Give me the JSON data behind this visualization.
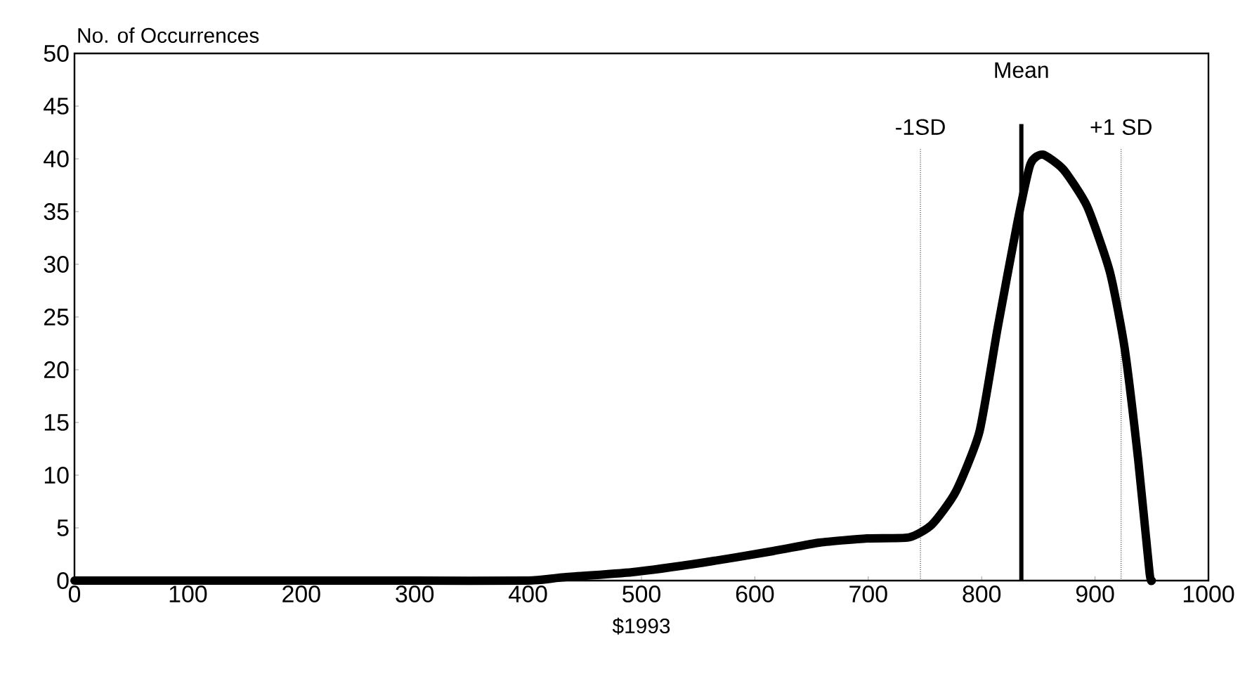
{
  "chart_data": {
    "type": "line",
    "xlabel": "$1993",
    "ylabel": "No. of Occurrences",
    "x": [
      0,
      100,
      200,
      300,
      400,
      430,
      492,
      554,
      616,
      657,
      699,
      736,
      756,
      777,
      798,
      814,
      831,
      843,
      854,
      872,
      893,
      913,
      926,
      938,
      948,
      950
    ],
    "series": [
      {
        "color": "#000000",
        "values": [
          0,
          0,
          0,
          0,
          0,
          0.3,
          0.8,
          1.7,
          2.8,
          3.6,
          4.0,
          4.1,
          5.3,
          8.4,
          14.1,
          23.9,
          33.7,
          39.5,
          40.4,
          39,
          35.5,
          29.3,
          22.1,
          11.5,
          0.8,
          0
        ]
      }
    ],
    "xlim": [
      0,
      1000
    ],
    "xticks": [
      0,
      100,
      200,
      300,
      400,
      500,
      600,
      700,
      800,
      900,
      1000
    ],
    "ylim": [
      0,
      50
    ],
    "yticks": [
      0,
      5,
      10,
      15,
      20,
      25,
      30,
      35,
      40,
      45,
      50
    ],
    "line_style": "solid",
    "grid": false,
    "ref_lines": [
      {
        "axis": "x",
        "value": 746,
        "label": "-1SD",
        "line_style": "dotted"
      },
      {
        "axis": "x",
        "value": 835,
        "label": "Mean",
        "line_style": "solid"
      },
      {
        "axis": "x",
        "value": 923,
        "label": "+1 SD",
        "line_style": "dotted"
      }
    ]
  }
}
